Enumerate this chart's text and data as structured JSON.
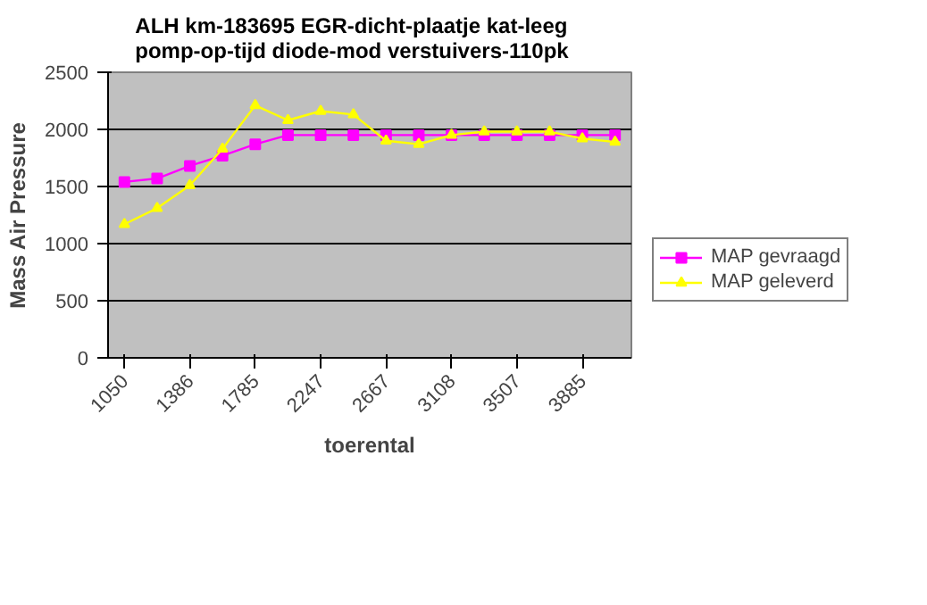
{
  "chart_data": {
    "type": "line",
    "title": "ALH   km-183695   EGR-dicht-plaatje   kat-leeg   pomp-op-tijd   diode-mod   verstuivers-110pk",
    "xlabel": "toerental",
    "ylabel": "Mass Air Pressure",
    "categories": [
      "1050",
      null,
      "1386",
      null,
      "1785",
      null,
      "2247",
      null,
      "2667",
      null,
      "3108",
      null,
      "3507",
      null,
      "3885",
      null
    ],
    "series": [
      {
        "name": "MAP gevraagd",
        "color": "#ff00ff",
        "marker": "square",
        "values": [
          1540,
          1570,
          1680,
          1770,
          1870,
          1950,
          1950,
          1950,
          1950,
          1950,
          1950,
          1950,
          1950,
          1950,
          1950,
          1950
        ]
      },
      {
        "name": "MAP geleverd",
        "color": "#ffff00",
        "marker": "triangle",
        "values": [
          1170,
          1310,
          1510,
          1830,
          2210,
          2080,
          2160,
          2130,
          1900,
          1870,
          1950,
          1980,
          1980,
          1980,
          1920,
          1890
        ]
      }
    ],
    "ylim": [
      0,
      2500
    ],
    "yticks": [
      0,
      500,
      1000,
      1500,
      2000,
      2500
    ],
    "grid": "y",
    "legend": "right"
  }
}
